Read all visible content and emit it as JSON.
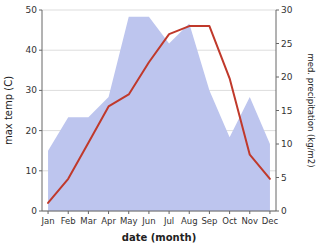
{
  "chart_data": {
    "type": "line",
    "categories": [
      "Jan",
      "Feb",
      "Mar",
      "Apr",
      "May",
      "Jun",
      "Jul",
      "Aug",
      "Sep",
      "Oct",
      "Nov",
      "Dec"
    ],
    "series": [
      {
        "type": "area",
        "axis": "y2",
        "color": "#bdc5ee",
        "values": [
          9,
          14,
          14,
          17,
          29,
          29,
          25,
          28,
          18,
          11,
          17,
          10
        ]
      },
      {
        "type": "line",
        "color": "#c0392b",
        "values": [
          2,
          8,
          17,
          26,
          29,
          37,
          44,
          46,
          46,
          33,
          14,
          8
        ]
      }
    ],
    "xlabel": "date (month)",
    "ylabel": "max temp (C)",
    "y2label": "med. precipitation (kg/m2)",
    "ylim": [
      0,
      50
    ],
    "yticks": [
      0,
      10,
      20,
      30,
      40,
      50
    ],
    "y2lim": [
      0,
      30
    ],
    "y2ticks": [
      0,
      5,
      10,
      15,
      20,
      25,
      30
    ],
    "grid": true
  }
}
